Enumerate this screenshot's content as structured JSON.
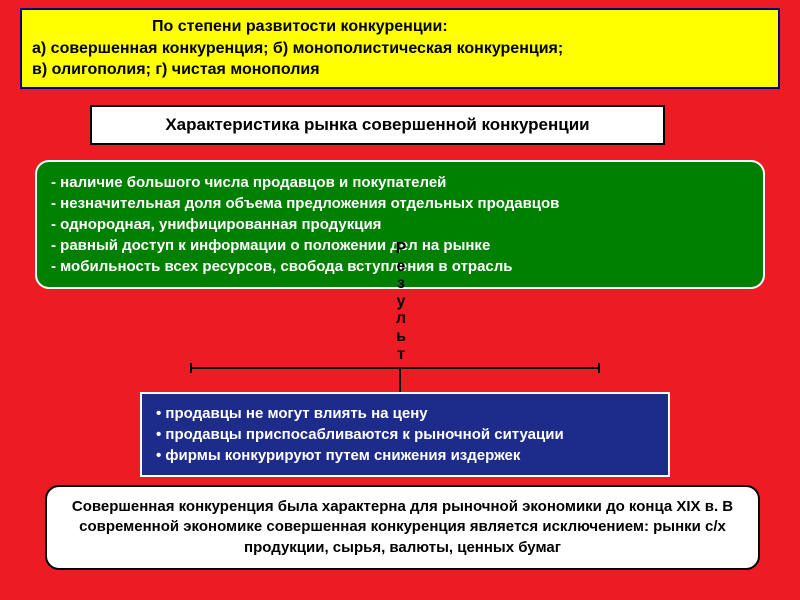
{
  "top": {
    "line1": "По степени развитости конкуренции:",
    "line2": "а) совершенная конкуренция; б) монополистическая конкуренция;",
    "line3": "в) олигополия; г) чистая монополия"
  },
  "title": "Характеристика рынка совершенной конкуренции",
  "green": {
    "b1": "- наличие большого числа продавцов и покупателей",
    "b2": "- незначительная доля объема предложения отдельных продавцов",
    "b3": "- однородная, унифицированная продукция",
    "b4": "- равный доступ к информации о положении дел на рынке",
    "b5": "- мобильность всех ресурсов, свобода вступления в отрасль"
  },
  "vertical": "Результ",
  "blue": {
    "b1": "• продавцы не могут влиять на цену",
    "b2": "• продавцы приспосабливаются к рыночной ситуации",
    "b3": "• фирмы конкурируют путем снижения издержек"
  },
  "bottom": "Совершенная конкуренция была характерна для рыночной экономики до конца XIX в. В современной экономике совершенная конкуренция является исключением: рынки с/х продукции, сырья, валюты, ценных бумаг",
  "colors": {
    "page_bg": "#ed1c24",
    "top_bg": "#ffff00",
    "top_border": "#000080",
    "title_bg": "#ffffff",
    "title_border": "#000000",
    "green_bg": "#008000",
    "green_border": "#ffffff",
    "blue_bg": "#1d2b8a",
    "blue_border": "#ffffff",
    "bottom_bg": "#ffffff",
    "bottom_border": "#000000",
    "text_dark": "#000000",
    "text_light": "#ffffff"
  }
}
